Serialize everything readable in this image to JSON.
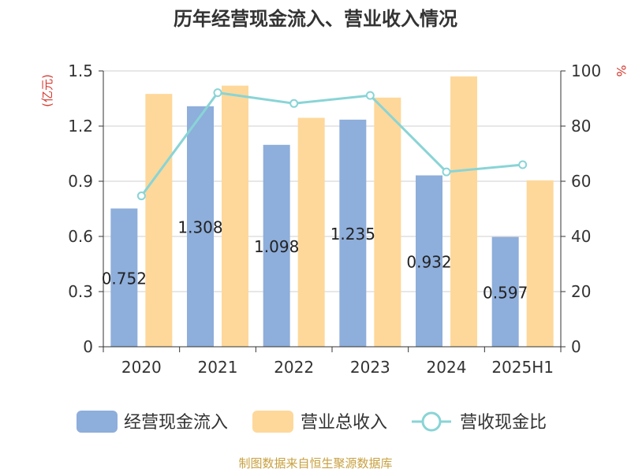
{
  "chart_data": {
    "type": "bar",
    "title": "历年经营现金流入、营业收入情况",
    "categories": [
      "2020",
      "2021",
      "2022",
      "2023",
      "2024",
      "2025H1"
    ],
    "series": [
      {
        "name": "经营现金流入",
        "kind": "bar",
        "axis": "left",
        "values": [
          0.752,
          1.308,
          1.098,
          1.235,
          0.932,
          0.597
        ],
        "labels": [
          "0.752",
          "1.308",
          "1.098",
          "1.235",
          "0.932",
          "0.597"
        ]
      },
      {
        "name": "营业总收入",
        "kind": "bar",
        "axis": "left",
        "values": [
          1.375,
          1.42,
          1.245,
          1.355,
          1.47,
          0.905
        ]
      },
      {
        "name": "营收现金比",
        "kind": "line",
        "axis": "right",
        "values": [
          54.7,
          92.1,
          88.2,
          91.1,
          63.4,
          66.0
        ]
      }
    ],
    "ylabel": "(亿元)",
    "y2label": "%",
    "ylim": [
      0,
      1.5
    ],
    "y2lim": [
      0,
      100
    ],
    "yticks": [
      "0",
      "0.3",
      "0.6",
      "0.9",
      "1.2",
      "1.5"
    ],
    "y2ticks": [
      "0",
      "20",
      "40",
      "60",
      "80",
      "100"
    ],
    "grid": true,
    "legend_position": "bottom",
    "colors": {
      "cash": "#8eaedb",
      "revenue": "#fed89a",
      "ratio": "#89d4d6",
      "ylabel": "#d43a2f",
      "source": "#c8a040"
    }
  },
  "source_text": "制图数据来自恒生聚源数据库"
}
